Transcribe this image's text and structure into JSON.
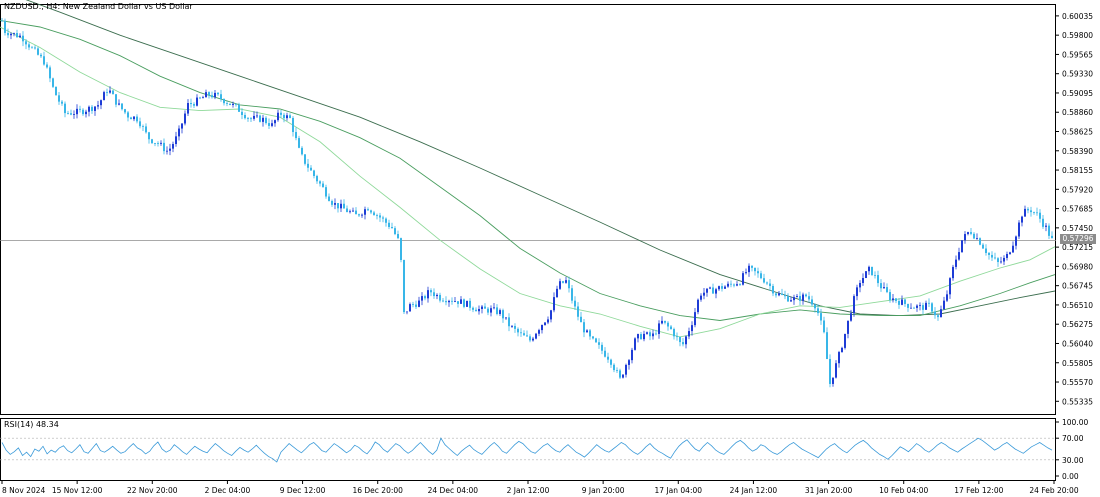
{
  "chart_data": {
    "type": "candlestick",
    "symbol_title": "NZDUSD., H4:  New Zealand Dollar vs US Dollar",
    "price_axis": {
      "ticks": [
        "0.60035",
        "0.59800",
        "0.59565",
        "0.59330",
        "0.59095",
        "0.58860",
        "0.58625",
        "0.58390",
        "0.58155",
        "0.57920",
        "0.57685",
        "0.57450",
        "0.57215",
        "0.56980",
        "0.56745",
        "0.56510",
        "0.56275",
        "0.56040",
        "0.55805",
        "0.55570",
        "0.55335"
      ],
      "ylim": [
        0.5518,
        0.6018
      ]
    },
    "current_price": "0.57296",
    "time_axis": [
      "8 Nov 2024",
      "15 Nov 12:00",
      "22 Nov 20:00",
      "2 Dec 04:00",
      "9 Dec 12:00",
      "16 Dec 20:00",
      "24 Dec 04:00",
      "2 Jan 12:00",
      "9 Jan 20:00",
      "17 Jan 04:00",
      "24 Jan 12:00",
      "31 Jan 20:00",
      "10 Feb 04:00",
      "17 Feb 12:00",
      "24 Feb 20:00"
    ],
    "price_path": [
      [
        0,
        0.6006
      ],
      [
        5,
        0.5985
      ],
      [
        12,
        0.5982
      ],
      [
        22,
        0.5978
      ],
      [
        33,
        0.5962
      ],
      [
        44,
        0.5948
      ],
      [
        54,
        0.5912
      ],
      [
        65,
        0.5885
      ],
      [
        78,
        0.5886
      ],
      [
        88,
        0.589
      ],
      [
        98,
        0.5895
      ],
      [
        108,
        0.5915
      ],
      [
        118,
        0.5895
      ],
      [
        128,
        0.5882
      ],
      [
        138,
        0.5878
      ],
      [
        148,
        0.5855
      ],
      [
        158,
        0.5848
      ],
      [
        168,
        0.5838
      ],
      [
        178,
        0.5858
      ],
      [
        188,
        0.5895
      ],
      [
        198,
        0.59
      ],
      [
        208,
        0.5908
      ],
      [
        218,
        0.5905
      ],
      [
        228,
        0.5898
      ],
      [
        238,
        0.589
      ],
      [
        250,
        0.5878
      ],
      [
        262,
        0.5878
      ],
      [
        272,
        0.587
      ],
      [
        280,
        0.5885
      ],
      [
        290,
        0.5878
      ],
      [
        300,
        0.5835
      ],
      [
        312,
        0.5812
      ],
      [
        322,
        0.5795
      ],
      [
        333,
        0.5775
      ],
      [
        344,
        0.5768
      ],
      [
        356,
        0.576
      ],
      [
        368,
        0.577
      ],
      [
        380,
        0.5758
      ],
      [
        392,
        0.5745
      ],
      [
        400,
        0.5725
      ],
      [
        404,
        0.564
      ],
      [
        410,
        0.565
      ],
      [
        420,
        0.5655
      ],
      [
        430,
        0.5668
      ],
      [
        440,
        0.566
      ],
      [
        450,
        0.5658
      ],
      [
        460,
        0.5655
      ],
      [
        470,
        0.565
      ],
      [
        480,
        0.5645
      ],
      [
        490,
        0.5645
      ],
      [
        500,
        0.5642
      ],
      [
        510,
        0.5625
      ],
      [
        520,
        0.5615
      ],
      [
        530,
        0.5608
      ],
      [
        540,
        0.5625
      ],
      [
        550,
        0.564
      ],
      [
        558,
        0.5675
      ],
      [
        566,
        0.568
      ],
      [
        574,
        0.565
      ],
      [
        582,
        0.5625
      ],
      [
        590,
        0.561
      ],
      [
        600,
        0.5598
      ],
      [
        610,
        0.5585
      ],
      [
        620,
        0.556
      ],
      [
        628,
        0.5585
      ],
      [
        636,
        0.561
      ],
      [
        644,
        0.5615
      ],
      [
        652,
        0.5612
      ],
      [
        662,
        0.563
      ],
      [
        672,
        0.562
      ],
      [
        682,
        0.56
      ],
      [
        692,
        0.563
      ],
      [
        700,
        0.5665
      ],
      [
        710,
        0.5668
      ],
      [
        720,
        0.5672
      ],
      [
        730,
        0.5675
      ],
      [
        740,
        0.568
      ],
      [
        748,
        0.5695
      ],
      [
        756,
        0.569
      ],
      [
        766,
        0.568
      ],
      [
        776,
        0.5665
      ],
      [
        786,
        0.566
      ],
      [
        796,
        0.5658
      ],
      [
        806,
        0.5662
      ],
      [
        816,
        0.565
      ],
      [
        824,
        0.5615
      ],
      [
        830,
        0.5555
      ],
      [
        838,
        0.5585
      ],
      [
        846,
        0.562
      ],
      [
        852,
        0.565
      ],
      [
        860,
        0.568
      ],
      [
        870,
        0.5695
      ],
      [
        880,
        0.5675
      ],
      [
        890,
        0.566
      ],
      [
        900,
        0.5655
      ],
      [
        910,
        0.565
      ],
      [
        920,
        0.5648
      ],
      [
        930,
        0.565
      ],
      [
        938,
        0.5635
      ],
      [
        946,
        0.566
      ],
      [
        954,
        0.57
      ],
      [
        962,
        0.573
      ],
      [
        970,
        0.5742
      ],
      [
        980,
        0.5728
      ],
      [
        990,
        0.571
      ],
      [
        998,
        0.5702
      ],
      [
        1006,
        0.5708
      ],
      [
        1014,
        0.573
      ],
      [
        1022,
        0.5762
      ],
      [
        1030,
        0.5768
      ],
      [
        1038,
        0.576
      ],
      [
        1046,
        0.5745
      ],
      [
        1052,
        0.573
      ]
    ],
    "ma_fast": [
      [
        0,
        0.599
      ],
      [
        40,
        0.5965
      ],
      [
        80,
        0.5935
      ],
      [
        120,
        0.591
      ],
      [
        160,
        0.5892
      ],
      [
        200,
        0.5888
      ],
      [
        240,
        0.589
      ],
      [
        280,
        0.588
      ],
      [
        320,
        0.585
      ],
      [
        360,
        0.5808
      ],
      [
        400,
        0.577
      ],
      [
        440,
        0.573
      ],
      [
        480,
        0.5695
      ],
      [
        520,
        0.5665
      ],
      [
        560,
        0.565
      ],
      [
        600,
        0.564
      ],
      [
        640,
        0.5625
      ],
      [
        680,
        0.5612
      ],
      [
        720,
        0.5622
      ],
      [
        760,
        0.564
      ],
      [
        800,
        0.565
      ],
      [
        840,
        0.5648
      ],
      [
        880,
        0.5655
      ],
      [
        920,
        0.5662
      ],
      [
        960,
        0.568
      ],
      [
        1000,
        0.5696
      ],
      [
        1030,
        0.5706
      ],
      [
        1055,
        0.5722
      ]
    ],
    "ma_mid": [
      [
        0,
        0.5998
      ],
      [
        40,
        0.599
      ],
      [
        80,
        0.5975
      ],
      [
        120,
        0.5955
      ],
      [
        160,
        0.593
      ],
      [
        200,
        0.591
      ],
      [
        240,
        0.5895
      ],
      [
        280,
        0.589
      ],
      [
        320,
        0.5875
      ],
      [
        360,
        0.5855
      ],
      [
        400,
        0.583
      ],
      [
        440,
        0.5795
      ],
      [
        480,
        0.576
      ],
      [
        520,
        0.572
      ],
      [
        560,
        0.569
      ],
      [
        600,
        0.5665
      ],
      [
        640,
        0.565
      ],
      [
        680,
        0.5638
      ],
      [
        720,
        0.5632
      ],
      [
        760,
        0.564
      ],
      [
        800,
        0.5645
      ],
      [
        840,
        0.564
      ],
      [
        880,
        0.5638
      ],
      [
        920,
        0.5638
      ],
      [
        960,
        0.565
      ],
      [
        1000,
        0.5665
      ],
      [
        1030,
        0.5678
      ],
      [
        1055,
        0.5688
      ]
    ],
    "ma_slow": [
      [
        0,
        0.6035
      ],
      [
        60,
        0.6008
      ],
      [
        120,
        0.598
      ],
      [
        180,
        0.5955
      ],
      [
        240,
        0.593
      ],
      [
        300,
        0.5905
      ],
      [
        360,
        0.588
      ],
      [
        420,
        0.585
      ],
      [
        480,
        0.5818
      ],
      [
        540,
        0.5785
      ],
      [
        600,
        0.5752
      ],
      [
        660,
        0.5718
      ],
      [
        720,
        0.5688
      ],
      [
        780,
        0.5665
      ],
      [
        820,
        0.565
      ],
      [
        860,
        0.564
      ],
      [
        900,
        0.5638
      ],
      [
        940,
        0.564
      ],
      [
        980,
        0.565
      ],
      [
        1020,
        0.566
      ],
      [
        1055,
        0.5668
      ]
    ],
    "rsi": {
      "label": "RSI(14) 48.34",
      "axis": [
        "100.00",
        "70.00",
        "30.00",
        "0.00"
      ],
      "levels": [
        70,
        30
      ],
      "ylim": [
        0,
        100
      ],
      "values": [
        62,
        48,
        40,
        45,
        52,
        38,
        44,
        36,
        50,
        46,
        55,
        41,
        48,
        44,
        52,
        56,
        47,
        43,
        50,
        58,
        45,
        42,
        51,
        60,
        47,
        44,
        49,
        55,
        48,
        42,
        45,
        53,
        60,
        52,
        48,
        41,
        46,
        56,
        63,
        50,
        44,
        48,
        58,
        52,
        45,
        40,
        48,
        55,
        50,
        46,
        43,
        52,
        60,
        54,
        47,
        42,
        38,
        46,
        53,
        48,
        44,
        50,
        57,
        49,
        42,
        36,
        32,
        26,
        44,
        52,
        60,
        54,
        48,
        43,
        50,
        58,
        62,
        55,
        47,
        44,
        52,
        60,
        55,
        49,
        43,
        48,
        57,
        53,
        46,
        41,
        50,
        63,
        58,
        49,
        44,
        52,
        60,
        56,
        48,
        42,
        47,
        55,
        62,
        54,
        46,
        40,
        48,
        70,
        58,
        51,
        44,
        38,
        46,
        52,
        57,
        49,
        44,
        40,
        48,
        56,
        62,
        55,
        46,
        42,
        50,
        58,
        64,
        60,
        52,
        45,
        42,
        49,
        56,
        60,
        53,
        47,
        44,
        52,
        58,
        51,
        44,
        40,
        35,
        42,
        50,
        58,
        52,
        47,
        44,
        50,
        56,
        62,
        58,
        50,
        44,
        40,
        46,
        54,
        60,
        52,
        46,
        42,
        37,
        33,
        45,
        55,
        62,
        67,
        58,
        50,
        46,
        55,
        62,
        56,
        48,
        43,
        40,
        47,
        55,
        62,
        66,
        60,
        52,
        46,
        50,
        58,
        55,
        48,
        43,
        40,
        45,
        52,
        58,
        62,
        56,
        50,
        46,
        42,
        38,
        34,
        42,
        50,
        56,
        60,
        53,
        47,
        43,
        50,
        57,
        62,
        66,
        60,
        52,
        46,
        40,
        36,
        31,
        38,
        46,
        54,
        50,
        45,
        52,
        60,
        55,
        48,
        44,
        50,
        57,
        62,
        58,
        52,
        48,
        44,
        50,
        55,
        60,
        65,
        70,
        66,
        60,
        54,
        48,
        52,
        58,
        62,
        56,
        50,
        46,
        42,
        48,
        54,
        58,
        62,
        57,
        52,
        48
      ]
    }
  }
}
